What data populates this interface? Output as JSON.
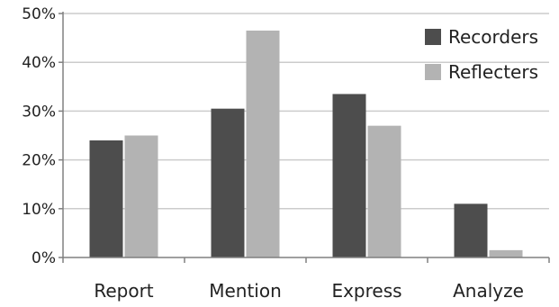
{
  "chart_data": {
    "type": "bar",
    "categories": [
      "Report",
      "Mention",
      "Express",
      "Analyze"
    ],
    "series": [
      {
        "name": "Recorders",
        "values": [
          24,
          30.5,
          33.5,
          11
        ],
        "color": "#4d4d4d"
      },
      {
        "name": "Reflecters",
        "values": [
          25,
          46.5,
          27,
          1.5
        ],
        "color": "#b3b3b3"
      }
    ],
    "ylim": [
      0,
      50
    ],
    "yticks": [
      0,
      10,
      20,
      30,
      40,
      50
    ],
    "ytick_labels": [
      "0%",
      "10%",
      "20%",
      "30%",
      "40%",
      "50%"
    ],
    "grid": true,
    "grid_color": "#cccccc",
    "axis_color": "#808080",
    "legend_position": "top-right",
    "title": "",
    "xlabel": "",
    "ylabel": ""
  }
}
